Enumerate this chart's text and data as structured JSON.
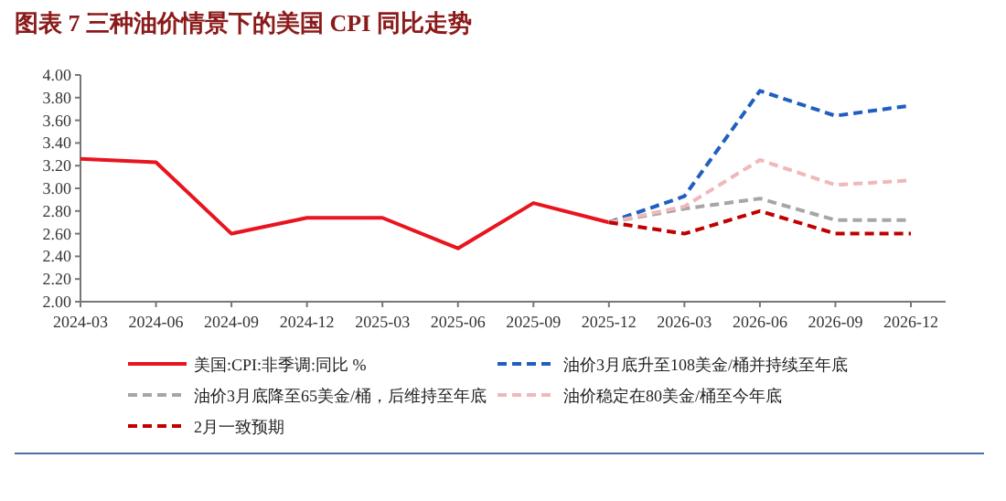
{
  "chart_data": {
    "type": "line",
    "title": "图表 7    三种油价情景下的美国 CPI 同比走势",
    "categories": [
      "2024-03",
      "2024-06",
      "2024-09",
      "2024-12",
      "2025-03",
      "2025-06",
      "2025-09",
      "2025-12",
      "2026-03",
      "2026-06",
      "2026-09",
      "2026-12"
    ],
    "ylim": [
      2.0,
      4.0
    ],
    "yticks": [
      {
        "value": 2.0,
        "label": "2.00"
      },
      {
        "value": 2.2,
        "label": "2.20"
      },
      {
        "value": 2.4,
        "label": "2.40"
      },
      {
        "value": 2.6,
        "label": "2.60"
      },
      {
        "value": 2.8,
        "label": "2.80"
      },
      {
        "value": 3.0,
        "label": "3.00"
      },
      {
        "value": 3.2,
        "label": "3.20"
      },
      {
        "value": 3.4,
        "label": "3.40"
      },
      {
        "value": 3.6,
        "label": "3.60"
      },
      {
        "value": 3.8,
        "label": "3.80"
      },
      {
        "value": 4.0,
        "label": "4.00"
      }
    ],
    "grid": false,
    "legend": "bottom",
    "marker": "none",
    "series": [
      {
        "name": "美国:CPI:非季调:同比 %",
        "color": "#e8141e",
        "line_style": "solid",
        "values": [
          3.26,
          3.23,
          2.6,
          2.74,
          2.74,
          2.47,
          2.87,
          2.7,
          null,
          null,
          null,
          null
        ]
      },
      {
        "name": "油价3月底升至108美金/桶并持续至年底",
        "color": "#1f5fbf",
        "line_style": "dashed",
        "values": [
          null,
          null,
          null,
          null,
          null,
          null,
          null,
          2.7,
          2.93,
          3.86,
          3.64,
          3.73
        ]
      },
      {
        "name": "油价3月底降至65美金/桶，后维持至年底",
        "color": "#a6a6a6",
        "line_style": "dashed",
        "values": [
          null,
          null,
          null,
          null,
          null,
          null,
          null,
          2.7,
          2.82,
          2.91,
          2.72,
          2.72
        ]
      },
      {
        "name": "油价稳定在80美金/桶至今年底",
        "color": "#f0b8b8",
        "line_style": "dashed",
        "values": [
          null,
          null,
          null,
          null,
          null,
          null,
          null,
          2.7,
          2.84,
          3.25,
          3.03,
          3.07
        ]
      },
      {
        "name": "2月一致预期",
        "color": "#c00000",
        "line_style": "dashed",
        "values": [
          null,
          null,
          null,
          null,
          null,
          null,
          null,
          2.7,
          2.6,
          2.8,
          2.6,
          2.6
        ]
      }
    ]
  }
}
